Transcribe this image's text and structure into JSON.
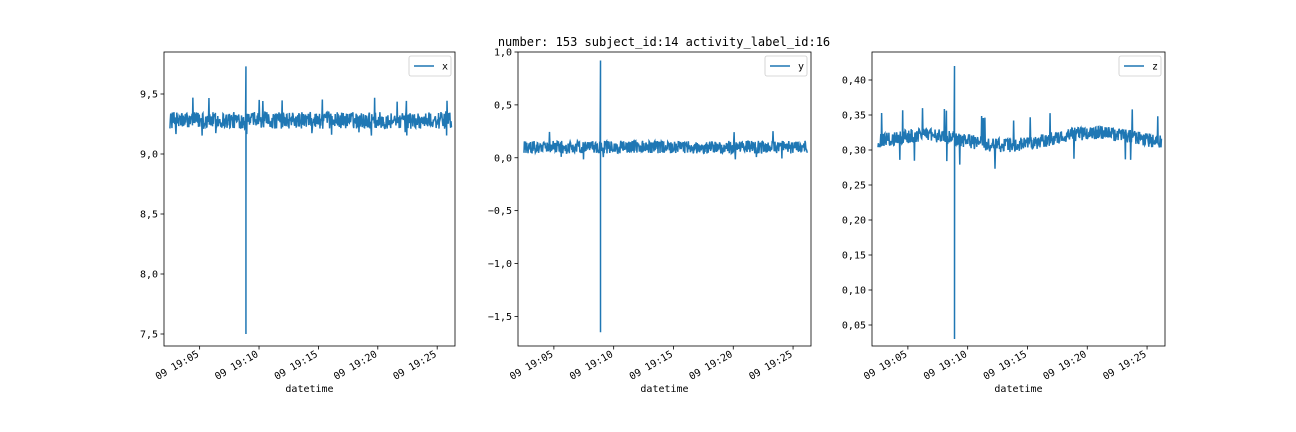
{
  "title": "number: 153 subject_id:14 activity_label_id:16",
  "colors": {
    "series": "#1f77b4",
    "axes": "#000000",
    "background": "#ffffff"
  },
  "chart_data": [
    {
      "type": "line",
      "xlabel": "datetime",
      "ylabel": "",
      "xlim": [
        "19:02",
        "19:26.5"
      ],
      "ylim": [
        7.4,
        9.85
      ],
      "xticks": [
        "09 19:05",
        "09 19:10",
        "09 19:15",
        "09 19:20",
        "09 19:25"
      ],
      "yticks": [
        {
          "value": 7.5,
          "label": "7,5"
        },
        {
          "value": 8.0,
          "label": "8,0"
        },
        {
          "value": 8.5,
          "label": "8,5"
        },
        {
          "value": 9.0,
          "label": "9,0"
        },
        {
          "value": 9.5,
          "label": "9,5"
        }
      ],
      "legend": {
        "position": "top-right",
        "entries": [
          "x"
        ]
      },
      "series": [
        {
          "name": "x",
          "start": "19:02.5",
          "end": "19:26.2",
          "baseline": 9.28,
          "noise": 0.07,
          "maxv": 9.47,
          "minv": 9.15,
          "spike": {
            "time": "19:08.9",
            "high": 9.73,
            "low": 7.5,
            "mid": 8.55
          }
        }
      ]
    },
    {
      "type": "line",
      "xlabel": "datetime",
      "ylabel": "",
      "xlim": [
        "19:02",
        "19:26.5"
      ],
      "ylim": [
        -1.78,
        1.0
      ],
      "xticks": [
        "09 19:05",
        "09 19:10",
        "09 19:15",
        "09 19:20",
        "09 19:25"
      ],
      "yticks": [
        {
          "value": -1.5,
          "label": "−1,5"
        },
        {
          "value": -1.0,
          "label": "−1,0"
        },
        {
          "value": -0.5,
          "label": "−0,5"
        },
        {
          "value": 0.0,
          "label": "0,0"
        },
        {
          "value": 0.5,
          "label": "0,5"
        },
        {
          "value": 1.0,
          "label": "1,0"
        }
      ],
      "legend": {
        "position": "top-right",
        "entries": [
          "y"
        ]
      },
      "series": [
        {
          "name": "y",
          "start": "19:02.5",
          "end": "19:26.2",
          "baseline": 0.1,
          "noise": 0.06,
          "maxv": 0.27,
          "minv": -0.02,
          "spike": {
            "time": "19:08.9",
            "high": 0.92,
            "low": -1.65,
            "mid": 0.05
          }
        }
      ]
    },
    {
      "type": "line",
      "xlabel": "datetime",
      "ylabel": "",
      "xlim": [
        "19:02",
        "19:26.5"
      ],
      "ylim": [
        0.02,
        0.44
      ],
      "xticks": [
        "09 19:05",
        "09 19:10",
        "09 19:15",
        "09 19:20",
        "09 19:25"
      ],
      "yticks": [
        {
          "value": 0.05,
          "label": "0,05"
        },
        {
          "value": 0.1,
          "label": "0,10"
        },
        {
          "value": 0.15,
          "label": "0,15"
        },
        {
          "value": 0.2,
          "label": "0,20"
        },
        {
          "value": 0.25,
          "label": "0,25"
        },
        {
          "value": 0.3,
          "label": "0,30"
        },
        {
          "value": 0.35,
          "label": "0,35"
        },
        {
          "value": 0.4,
          "label": "0,40"
        }
      ],
      "legend": {
        "position": "top-right",
        "entries": [
          "z"
        ]
      },
      "series": [
        {
          "name": "z",
          "start": "19:02.5",
          "end": "19:26.2",
          "baseline": 0.312,
          "noise": 0.01,
          "maxv": 0.352,
          "minv": 0.275,
          "spike": {
            "time": "19:08.9",
            "high": 0.42,
            "low": 0.03,
            "mid": 0.05
          }
        }
      ]
    }
  ]
}
